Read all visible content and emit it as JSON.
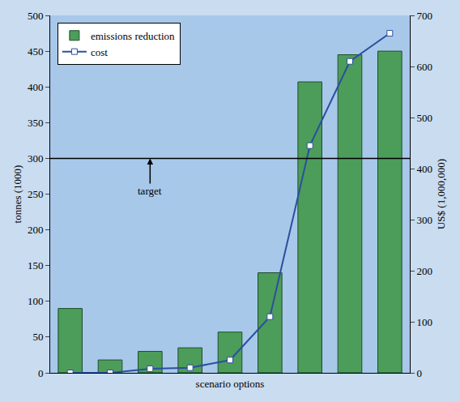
{
  "chart_data": {
    "type": "bar",
    "x_label": "scenario options",
    "y_label": "tonnes (1000)",
    "y2_label": "US$ (1,000,000)",
    "categories": [
      null,
      null,
      null,
      null,
      null,
      null,
      null,
      null,
      null
    ],
    "series": [
      {
        "name": "emissions reduction",
        "type": "bar",
        "color": "#4c9d5a",
        "values": [
          90,
          18,
          30,
          35,
          57,
          140,
          407,
          445,
          450
        ]
      },
      {
        "name": "cost",
        "type": "line",
        "axis": "y2",
        "color": "#2b4f9e",
        "marker": "square",
        "values": [
          0,
          0,
          8,
          10,
          25,
          110,
          445,
          610,
          665
        ]
      }
    ],
    "annotations": [
      {
        "text": "target",
        "value": 300
      }
    ],
    "ylim": [
      0,
      500
    ],
    "yticks": [
      0,
      50,
      100,
      150,
      200,
      250,
      300,
      350,
      400,
      450,
      500
    ],
    "y2lim": [
      0,
      700
    ],
    "y2ticks": [
      0,
      100,
      200,
      300,
      400,
      500,
      600,
      700
    ],
    "grid": false,
    "legend": "top left"
  }
}
